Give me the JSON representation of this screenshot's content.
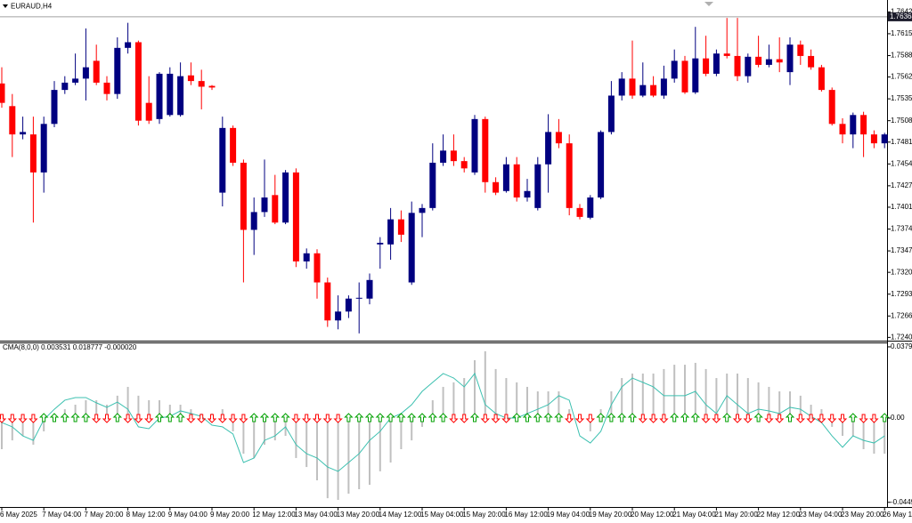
{
  "chart_data": [
    {
      "type": "candlestick",
      "title": "EURAUD,H4",
      "categories": [
        "6 May 2025",
        null,
        null,
        null,
        "7 May 04:00",
        null,
        null,
        null,
        "7 May 20:00",
        null,
        null,
        null,
        "8 May 12:00",
        null,
        null,
        null,
        "9 May 04:00",
        null,
        null,
        null,
        "9 May 20:00",
        null,
        null,
        null,
        "12 May 12:00",
        null,
        null,
        null,
        "13 May 04:00",
        null,
        null,
        null,
        "13 May 20:00",
        null,
        null,
        null,
        "14 May 12:00",
        null,
        null,
        null,
        "15 May 04:00",
        null,
        null,
        null,
        "15 May 20:00",
        null,
        null,
        null,
        "16 May 12:00",
        null,
        null,
        null,
        "19 May 04:00",
        null,
        null,
        null,
        "19 May 20:00",
        null,
        null,
        null,
        "20 May 12:00",
        null,
        null,
        null,
        "21 May 04:00",
        null,
        null,
        null,
        "21 May 20:00",
        null,
        null,
        null,
        "22 May 12:00",
        null,
        null,
        null,
        "23 May 04:00",
        null,
        null,
        null,
        "23 May 20:00",
        null,
        null,
        null,
        "26 May 12:00"
      ],
      "open": [
        1.7554,
        1.7526,
        1.7491,
        1.7491,
        1.7444,
        1.7504,
        1.7546,
        1.7555,
        1.756,
        1.7582,
        1.7555,
        1.7541,
        1.7598,
        1.7605,
        1.753,
        1.751,
        1.7515,
        1.7515,
        1.7564,
        1.7557,
        1.7551,
        1.7419,
        1.7499,
        1.7456,
        1.7373,
        1.7395,
        1.7416,
        1.7382,
        1.7444,
        1.7334,
        1.7344,
        1.7308,
        1.7261,
        1.7272,
        1.7288,
        1.7288,
        1.7355,
        1.7355,
        1.7386,
        1.7308,
        1.7394,
        1.74,
        1.7456,
        1.7471,
        1.7458,
        1.7444,
        1.751,
        1.7432,
        1.7421,
        1.7454,
        1.7413,
        1.74,
        1.7454,
        1.7494,
        1.748,
        1.74,
        1.7388,
        1.7413,
        1.7494,
        1.7539,
        1.756,
        1.7539,
        1.7552,
        1.7539,
        1.756,
        1.7582,
        1.7543,
        1.7585,
        1.7566,
        1.7591,
        1.7588,
        1.7563,
        1.7587,
        1.7577,
        1.7584,
        1.7568,
        1.7602,
        1.7588,
        1.7574,
        1.7546,
        1.7504,
        1.7491,
        1.7515,
        1.7491,
        1.748
      ],
      "high": [
        1.7574,
        1.7541,
        1.7513,
        1.7513,
        1.7513,
        1.7557,
        1.7563,
        1.7591,
        1.7622,
        1.7602,
        1.7563,
        1.7611,
        1.7629,
        1.7607,
        1.7563,
        1.7568,
        1.7574,
        1.758,
        1.758,
        1.7571,
        1.7552,
        1.7513,
        1.7502,
        1.746,
        1.7413,
        1.746,
        1.7441,
        1.7447,
        1.7449,
        1.735,
        1.7349,
        1.7314,
        1.7292,
        1.7292,
        1.7308,
        1.7319,
        1.7364,
        1.74,
        1.7397,
        1.7408,
        1.7405,
        1.748,
        1.7491,
        1.7491,
        1.7463,
        1.7515,
        1.7513,
        1.7438,
        1.7463,
        1.7463,
        1.7436,
        1.7463,
        1.7516,
        1.751,
        1.7491,
        1.7405,
        1.7416,
        1.7496,
        1.7557,
        1.7568,
        1.7607,
        1.758,
        1.7563,
        1.7576,
        1.7596,
        1.7588,
        1.7624,
        1.7613,
        1.7596,
        1.7635,
        1.7635,
        1.7591,
        1.7613,
        1.7602,
        1.7611,
        1.7611,
        1.7607,
        1.7596,
        1.7577,
        1.7549,
        1.7511,
        1.7518,
        1.7519,
        1.7496,
        1.7493
      ],
      "low": [
        1.7524,
        1.7463,
        1.7485,
        1.7382,
        1.7419,
        1.75,
        1.7541,
        1.7552,
        1.7533,
        1.7552,
        1.7533,
        1.7535,
        1.7591,
        1.7502,
        1.7504,
        1.7504,
        1.7513,
        1.7513,
        1.7552,
        1.7522,
        1.7546,
        1.7402,
        1.7452,
        1.7308,
        1.7342,
        1.7389,
        1.738,
        1.738,
        1.7327,
        1.7325,
        1.7288,
        1.7253,
        1.725,
        1.7264,
        1.7245,
        1.7281,
        1.7325,
        1.7336,
        1.7358,
        1.7305,
        1.7364,
        1.7397,
        1.7452,
        1.7452,
        1.7444,
        1.7441,
        1.7419,
        1.7416,
        1.7419,
        1.7408,
        1.7408,
        1.7397,
        1.7419,
        1.7474,
        1.7391,
        1.7386,
        1.7386,
        1.7411,
        1.7491,
        1.7533,
        1.7535,
        1.7537,
        1.7537,
        1.7535,
        1.7555,
        1.7541,
        1.7541,
        1.7563,
        1.7563,
        1.7585,
        1.7557,
        1.7555,
        1.7574,
        1.7574,
        1.7568,
        1.7552,
        1.7577,
        1.7571,
        1.7544,
        1.7502,
        1.748,
        1.7474,
        1.7463,
        1.7474,
        1.7474
      ],
      "close": [
        1.753,
        1.7491,
        1.7494,
        1.7444,
        1.7504,
        1.7546,
        1.7555,
        1.756,
        1.7574,
        1.7555,
        1.7541,
        1.7598,
        1.7605,
        1.7508,
        1.7508,
        1.7566,
        1.7566,
        1.7563,
        1.7557,
        1.755,
        1.7549,
        1.7499,
        1.7456,
        1.7373,
        1.7395,
        1.7413,
        1.7382,
        1.7444,
        1.7334,
        1.7344,
        1.7308,
        1.7261,
        1.7272,
        1.7288,
        1.7289,
        1.7311,
        1.7357,
        1.7386,
        1.7367,
        1.7394,
        1.74,
        1.7456,
        1.7471,
        1.7458,
        1.7449,
        1.751,
        1.7432,
        1.7419,
        1.7454,
        1.7413,
        1.7421,
        1.7454,
        1.7494,
        1.748,
        1.74,
        1.7389,
        1.7413,
        1.7494,
        1.7539,
        1.756,
        1.7539,
        1.7552,
        1.7539,
        1.756,
        1.7582,
        1.7543,
        1.7585,
        1.7566,
        1.7591,
        1.7588,
        1.7563,
        1.7587,
        1.7577,
        1.7584,
        1.758,
        1.7602,
        1.7588,
        1.7574,
        1.7546,
        1.7504,
        1.7491,
        1.7515,
        1.7491,
        1.748,
        1.7491
      ],
      "up_color": "#000080",
      "down_color": "#ff0000",
      "ylim": [
        1.7236,
        1.7655
      ],
      "yticks": [
        1.76425,
        1.76155,
        1.75885,
        {
          "value": 1.7562,
          "label": "1.75620"
        },
        {
          "value": 1.7535,
          "label": "1.75350"
        },
        {
          "value": 1.7508,
          "label": "1.75080"
        },
        1.74815,
        1.74545,
        1.74275,
        {
          "value": 1.7401,
          "label": "1.74010"
        },
        {
          "value": 1.7374,
          "label": "1.73740"
        },
        {
          "value": 1.7347,
          "label": "1.73470"
        },
        1.73205,
        1.72935,
        1.72665,
        {
          "value": 1.724,
          "label": "1.72400"
        }
      ],
      "last_price": 1.76364
    },
    {
      "type": "histogram",
      "title": "CMA(8,0,0) 0.003531 0.018777 -0.000020",
      "series": [
        {
          "kind": "bar",
          "color": "#c0c0c0",
          "values": [
            -0.0166,
            -0.0119,
            -0.0095,
            -0.0142,
            -0.0071,
            0.0024,
            0.0047,
            0.0071,
            0.0095,
            0.0095,
            0.0071,
            0.0119,
            0.0166,
            0.0119,
            0.0095,
            0.0095,
            0.0071,
            0.0071,
            0.0047,
            0.0024,
            0.0024,
            0.0047,
            -0.0071,
            -0.019,
            -0.0213,
            -0.0142,
            -0.0119,
            -0.0095,
            -0.0213,
            -0.0261,
            -0.0332,
            -0.0427,
            -0.0436,
            -0.0403,
            -0.0379,
            -0.0356,
            -0.0284,
            -0.0237,
            -0.0166,
            -0.0119,
            -0.0047,
            0.0095,
            0.0166,
            0.019,
            0.0213,
            0.0308,
            0.0356,
            0.0261,
            0.0213,
            0.019,
            0.0166,
            0.0142,
            0.0142,
            0.0142,
            0.0047,
            -0.0024,
            -0.0071,
            0.0047,
            0.0142,
            0.0213,
            0.0237,
            0.0237,
            0.0237,
            0.0261,
            0.0284,
            0.0284,
            0.0294,
            0.0261,
            0.0213,
            0.0237,
            0.0237,
            0.0213,
            0.019,
            0.0166,
            0.0142,
            0.0142,
            0.0119,
            0.0071,
            0.0047,
            -0.0047,
            -0.0095,
            -0.0095,
            -0.0166,
            -0.019,
            -0.019
          ]
        },
        {
          "kind": "line",
          "color": "#3cc0b0",
          "values": [
            -0.0024,
            -0.0047,
            -0.0095,
            -0.0119,
            -0.0009,
            0.0047,
            0.0095,
            0.0109,
            0.0109,
            0.0081,
            0.0057,
            0.0085,
            0.0047,
            -0.0047,
            -0.0057,
            0,
            0.0009,
            0.0038,
            0.0024,
            0.0009,
            -0.0038,
            -0.0047,
            -0.0085,
            -0.0237,
            -0.0213,
            -0.0119,
            -0.0095,
            -0.0047,
            -0.0142,
            -0.019,
            -0.0213,
            -0.0261,
            -0.0284,
            -0.0237,
            -0.019,
            -0.0119,
            -0.0071,
            0,
            0.0024,
            0.0071,
            0.0142,
            0.019,
            0.0237,
            0.0213,
            0.0166,
            0.0237,
            0.0071,
            0.0024,
            0,
            0,
            0.0024,
            0.0047,
            0.0071,
            0.0119,
            0.0095,
            -0.0095,
            -0.0133,
            -0.0071,
            0.0071,
            0.0166,
            0.0213,
            0.019,
            0.0166,
            0.0119,
            0.0119,
            0.0119,
            0.0142,
            0.0071,
            0.0024,
            0.0119,
            0.0071,
            0.0024,
            0.0047,
            0.0038,
            0.0024,
            0.0057,
            0.0047,
            0.0009,
            -0.0024,
            -0.0095,
            -0.0156,
            -0.0095,
            -0.0119,
            -0.0133,
            -0.0095
          ]
        }
      ],
      "arrow_up_color": "#00a000",
      "arrow_down_color": "#ff0000",
      "ylim": [
        -0.0474,
        0.0398
      ],
      "yticks": [
        0.03793,
        {
          "value": 0,
          "label": "0.00"
        },
        -0.0449
      ]
    }
  ]
}
